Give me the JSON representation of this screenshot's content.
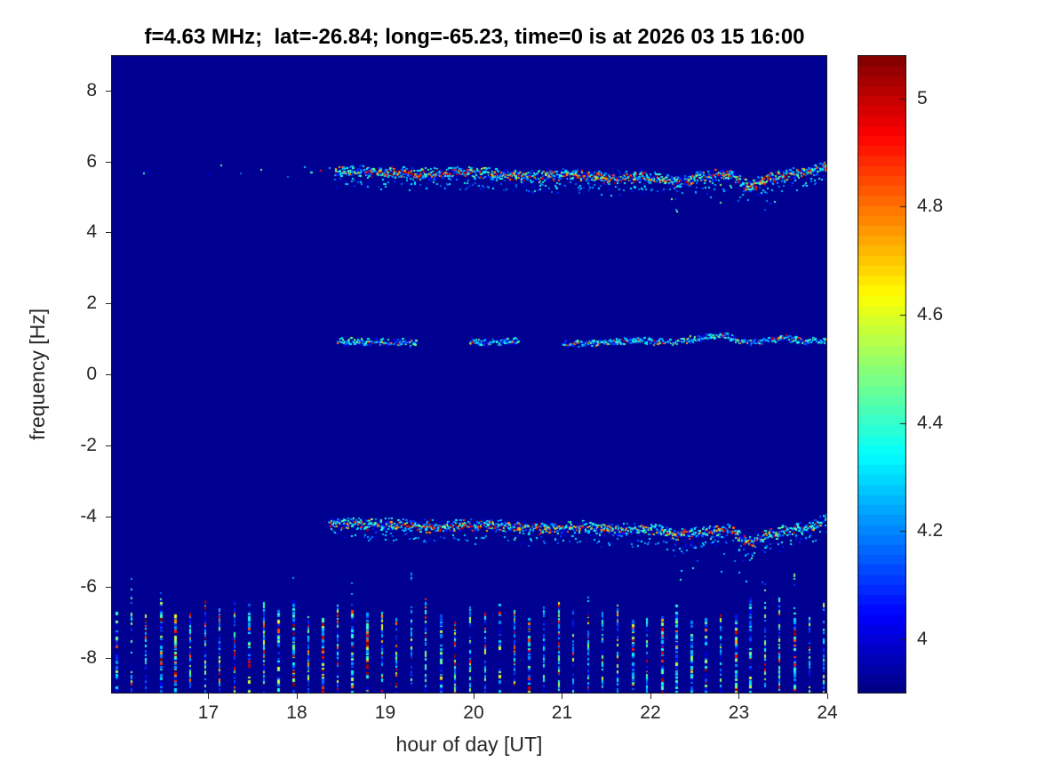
{
  "chart_data": {
    "type": "heatmap",
    "title": "f=4.63 MHz;  lat=-26.84; long=-65.23, time=0 is at 2026 03 15 16:00",
    "xlabel": "hour of day [UT]",
    "ylabel": "frequency [Hz]",
    "xlim": [
      15.9,
      24
    ],
    "ylim": [
      -9,
      9
    ],
    "xticks": [
      17,
      18,
      19,
      20,
      21,
      22,
      23,
      24
    ],
    "yticks": [
      8,
      6,
      4,
      2,
      0,
      -2,
      -4,
      -6,
      -8
    ],
    "grid": false,
    "legend": "none",
    "colorbar": {
      "position": "right",
      "colormap": "jet",
      "min": 3.9,
      "max": 5.08,
      "ticks": [
        {
          "value": 4,
          "label": "4"
        },
        {
          "value": 4.2,
          "label": "4.2"
        },
        {
          "value": 4.4,
          "label": "4.4"
        },
        {
          "value": 4.6,
          "label": "4.6"
        },
        {
          "value": 4.8,
          "label": "4.8"
        },
        {
          "value": 5,
          "label": "5"
        }
      ]
    },
    "background_value": 3.92,
    "features": [
      {
        "name": "upper-sideband-trace",
        "kind": "trace",
        "seed": 101,
        "x_start": 16.15,
        "x_end": 24,
        "sparse_until": 18.42,
        "sparse_density": 0.045,
        "density": 1.5,
        "jitter": 0.1,
        "hot_prob": 0.42,
        "secondary_offset": -0.3,
        "secondary_prob": 0.22,
        "gaps": [],
        "deep_scatter": {
          "x_start": 22.2,
          "x_end": 23.4,
          "depth": 0.85,
          "prob": 0.09
        },
        "path": [
          [
            16.15,
            5.75
          ],
          [
            17.2,
            5.73
          ],
          [
            18.0,
            5.71
          ],
          [
            18.42,
            5.74
          ],
          [
            19.0,
            5.69
          ],
          [
            19.5,
            5.63
          ],
          [
            19.9,
            5.7
          ],
          [
            20.3,
            5.62
          ],
          [
            20.7,
            5.57
          ],
          [
            21.1,
            5.62
          ],
          [
            21.5,
            5.53
          ],
          [
            21.9,
            5.58
          ],
          [
            22.3,
            5.42
          ],
          [
            22.6,
            5.58
          ],
          [
            22.9,
            5.63
          ],
          [
            23.1,
            5.28
          ],
          [
            23.35,
            5.52
          ],
          [
            23.6,
            5.63
          ],
          [
            23.8,
            5.72
          ],
          [
            24.0,
            5.88
          ]
        ]
      },
      {
        "name": "carrier-trace",
        "kind": "trace",
        "seed": 202,
        "x_start": 18.45,
        "x_end": 24,
        "density": 1.0,
        "jitter": 0.055,
        "hot_prob": 0.16,
        "gaps": [
          [
            19.35,
            19.95
          ],
          [
            20.5,
            21.0
          ]
        ],
        "path": [
          [
            18.45,
            0.92
          ],
          [
            19.0,
            0.9
          ],
          [
            19.35,
            0.88
          ],
          [
            19.95,
            0.9
          ],
          [
            20.5,
            0.92
          ],
          [
            21.0,
            0.85
          ],
          [
            21.4,
            0.9
          ],
          [
            21.8,
            0.96
          ],
          [
            22.2,
            0.9
          ],
          [
            22.5,
            1.0
          ],
          [
            22.8,
            1.12
          ],
          [
            23.0,
            0.94
          ],
          [
            23.2,
            0.9
          ],
          [
            23.5,
            1.03
          ],
          [
            23.75,
            0.92
          ],
          [
            24.0,
            0.98
          ]
        ]
      },
      {
        "name": "lower-sideband-trace",
        "kind": "trace",
        "seed": 303,
        "x_start": 18.35,
        "x_end": 24,
        "density": 1.4,
        "jitter": 0.1,
        "hot_prob": 0.38,
        "secondary_offset": -0.33,
        "secondary_prob": 0.18,
        "gaps": [],
        "deep_scatter": {
          "x_start": 22.2,
          "x_end": 23.5,
          "depth": 1.3,
          "prob": 0.06
        },
        "path": [
          [
            18.35,
            -4.2
          ],
          [
            19.0,
            -4.23
          ],
          [
            19.6,
            -4.3
          ],
          [
            20.0,
            -4.25
          ],
          [
            20.4,
            -4.3
          ],
          [
            20.8,
            -4.35
          ],
          [
            21.2,
            -4.3
          ],
          [
            21.6,
            -4.4
          ],
          [
            22.0,
            -4.36
          ],
          [
            22.3,
            -4.55
          ],
          [
            22.6,
            -4.46
          ],
          [
            22.9,
            -4.38
          ],
          [
            23.1,
            -4.78
          ],
          [
            23.35,
            -4.52
          ],
          [
            23.6,
            -4.4
          ],
          [
            23.8,
            -4.28
          ],
          [
            24.0,
            -4.1
          ]
        ]
      },
      {
        "name": "bottom-interference-stripes",
        "kind": "stripes",
        "seed": 404,
        "x_start": 15.95,
        "x_end": 24.0,
        "spacing": 0.1667,
        "y_bottom": -8.98,
        "y_top_min": -6.9,
        "y_top_max": -6.25,
        "tall_prob": 0.14,
        "tall_top": -5.5,
        "hot_prob": 0.2
      }
    ]
  }
}
